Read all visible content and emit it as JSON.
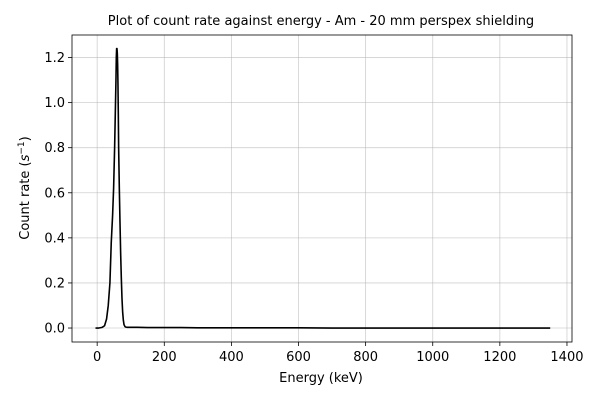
{
  "chart_data": {
    "type": "line",
    "title": "Plot of count rate against energy - Am - 20 mm perspex shielding",
    "xlabel": "Energy (keV)",
    "ylabel_main": "Count rate (",
    "ylabel_unit_base": "s",
    "ylabel_unit_exp": "−1",
    "ylabel_close": ")",
    "xlim": [
      -75,
      1415
    ],
    "ylim": [
      -0.062,
      1.3
    ],
    "x_ticks": [
      0,
      200,
      400,
      600,
      800,
      1000,
      1200,
      1400
    ],
    "x_tick_labels": [
      "0",
      "200",
      "400",
      "600",
      "800",
      "1000",
      "1200",
      "1400"
    ],
    "y_ticks": [
      0.0,
      0.2,
      0.4,
      0.6,
      0.8,
      1.0,
      1.2
    ],
    "y_tick_labels": [
      "0.0",
      "0.2",
      "0.4",
      "0.6",
      "0.8",
      "1.0",
      "1.2"
    ],
    "grid": true,
    "line_color": "#000000",
    "series": [
      {
        "x": [
          -5,
          5,
          15,
          22,
          28,
          33,
          38,
          42,
          46,
          49,
          52,
          54,
          56,
          57,
          58,
          59,
          60,
          61,
          62,
          63,
          64,
          66,
          68,
          70,
          72,
          74,
          76,
          78,
          80,
          83,
          86,
          90,
          100,
          120,
          150,
          200,
          250,
          300,
          400,
          500,
          600,
          700,
          800,
          900,
          1000,
          1100,
          1200,
          1300,
          1350
        ],
        "y": [
          0.0,
          0.0,
          0.003,
          0.01,
          0.04,
          0.1,
          0.2,
          0.38,
          0.5,
          0.62,
          0.8,
          0.95,
          1.1,
          1.2,
          1.24,
          1.24,
          1.22,
          1.17,
          1.08,
          0.95,
          0.8,
          0.62,
          0.47,
          0.33,
          0.22,
          0.13,
          0.07,
          0.035,
          0.015,
          0.006,
          0.004,
          0.003,
          0.003,
          0.003,
          0.002,
          0.002,
          0.002,
          0.001,
          0.001,
          0.001,
          0.001,
          0.0,
          0.0,
          0.0,
          0.0,
          0.0,
          0.0,
          0.0,
          0.0
        ]
      }
    ]
  }
}
